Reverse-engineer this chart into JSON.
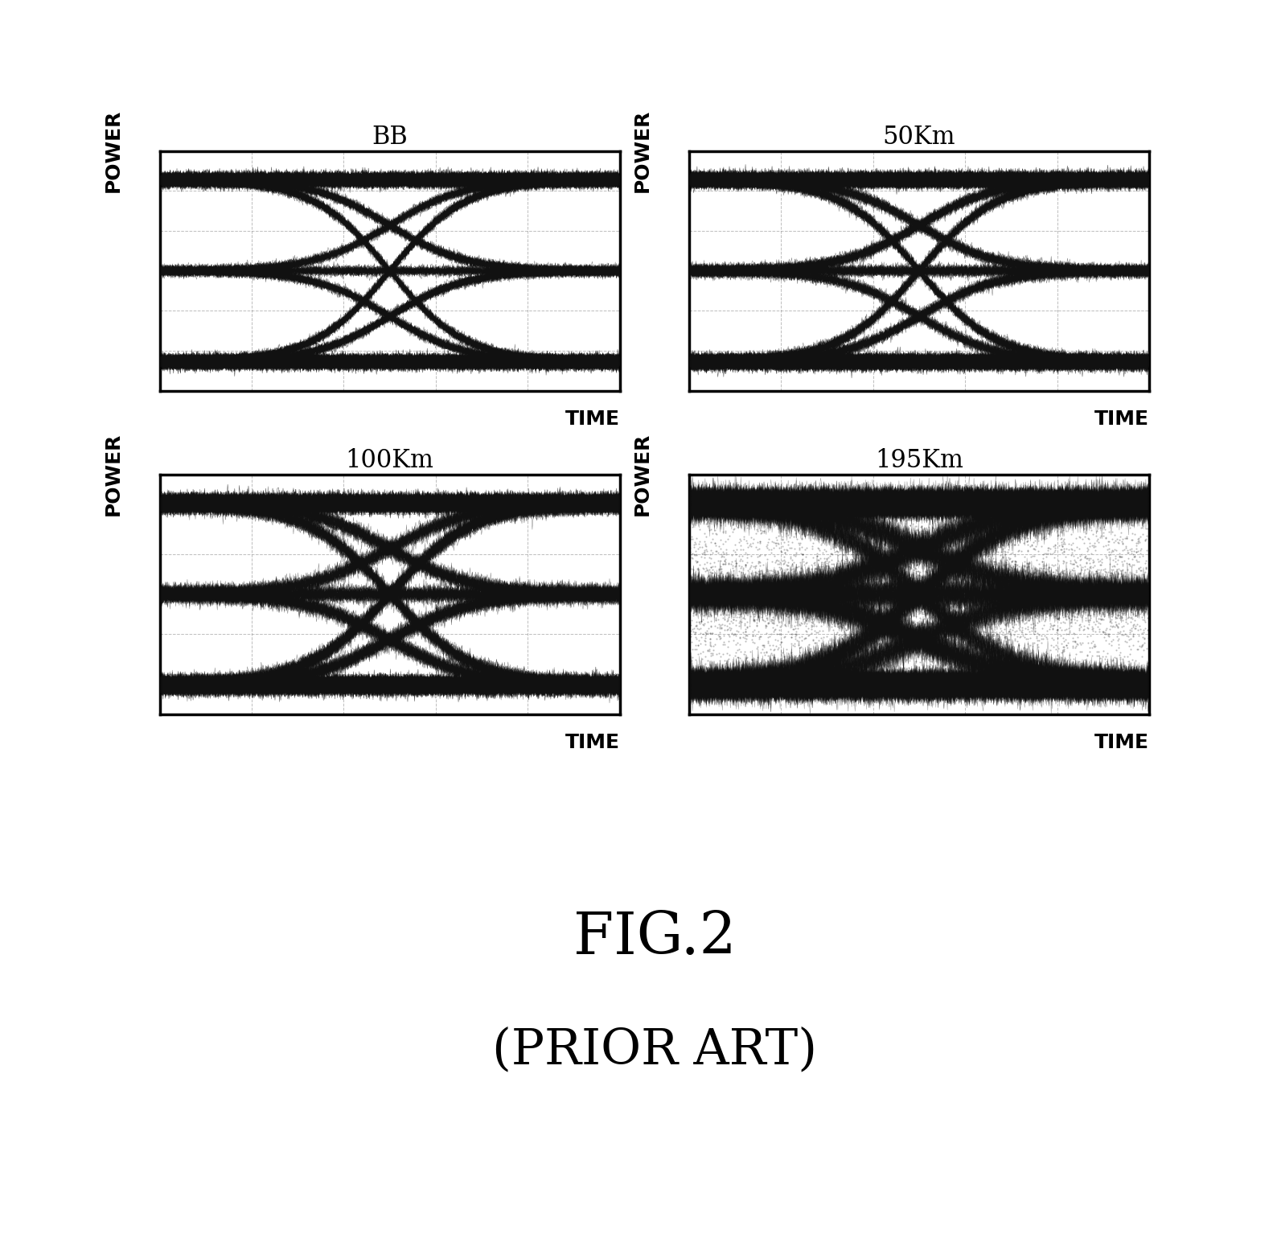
{
  "panels": [
    {
      "title": "BB",
      "noise_level": 0.05,
      "eye_clarity": 0.95
    },
    {
      "title": "50Km",
      "noise_level": 0.08,
      "eye_clarity": 0.85
    },
    {
      "title": "100Km",
      "noise_level": 0.15,
      "eye_clarity": 0.7
    },
    {
      "title": "195Km",
      "noise_level": 0.45,
      "eye_clarity": 0.3
    }
  ],
  "xlabel": "TIME",
  "ylabel": "POWER",
  "figure_title": "FIG.2",
  "figure_subtitle": "(PRIOR ART)",
  "bg_color": "#ffffff",
  "grid_color": "#888888",
  "trace_color": "#111111",
  "grid_rows": 6,
  "grid_cols": 5,
  "title_fontsize": 22,
  "label_fontsize": 18,
  "caption_fontsize": 52,
  "subcaption_fontsize": 44
}
